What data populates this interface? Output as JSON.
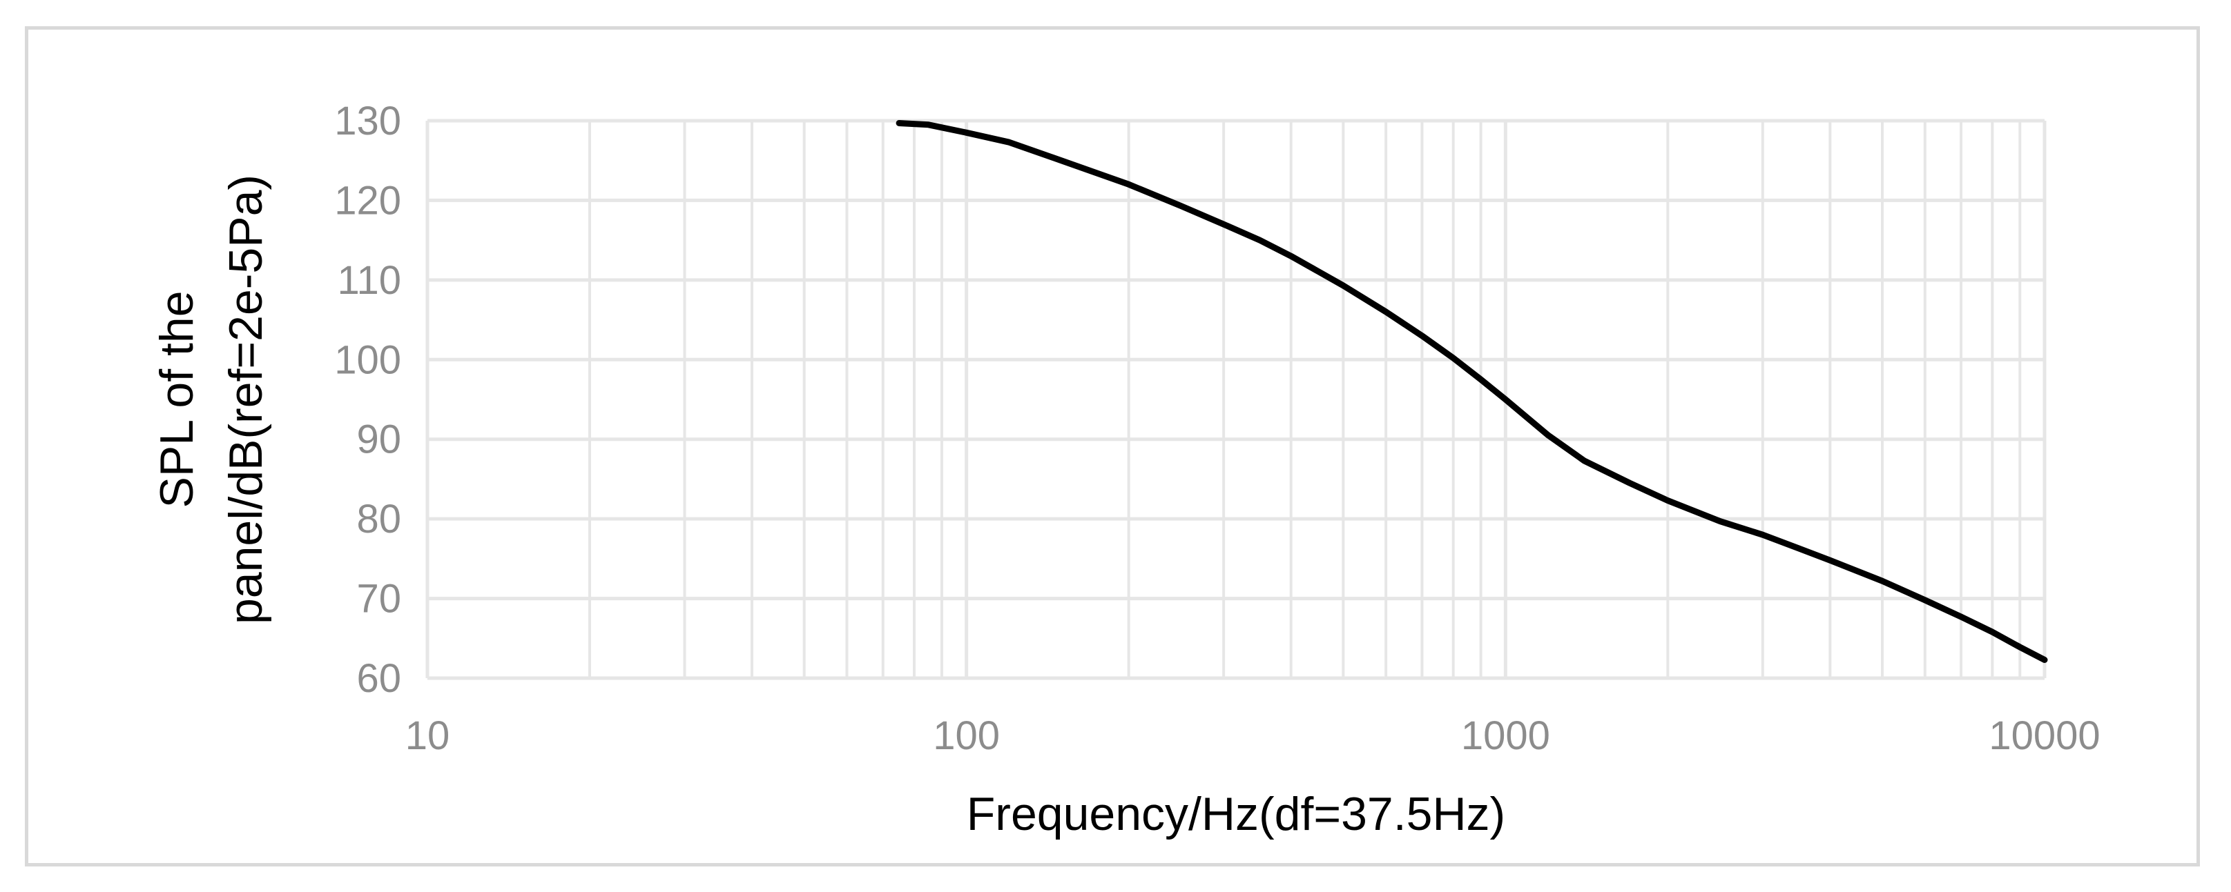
{
  "chart_data": {
    "type": "line",
    "xscale": "log",
    "xlim": [
      10,
      10000
    ],
    "ylim": [
      60,
      130
    ],
    "grid": {
      "major": true,
      "minor_x": true
    },
    "legend": "none",
    "xlabel": "Frequency/Hz(df=37.5Hz)",
    "ylabel_lines": [
      "SPL of the",
      "panel/dB(ref=2e-5Pa)"
    ],
    "x_ticks": [
      10,
      100,
      1000,
      10000
    ],
    "x_tick_labels": [
      "10",
      "100",
      "1000",
      "10000"
    ],
    "y_ticks": [
      60,
      70,
      80,
      90,
      100,
      110,
      120,
      130
    ],
    "y_tick_labels": [
      "60",
      "70",
      "80",
      "90",
      "100",
      "110",
      "120",
      "130"
    ],
    "colors": {
      "line": "#000000",
      "grid": "#e6e6e6",
      "tick_text": "#8c8c8c",
      "frame": "#d9d9d9"
    },
    "series": [
      {
        "x": [
          75,
          85,
          100,
          120,
          150,
          200,
          250,
          300,
          350,
          400,
          500,
          600,
          700,
          800,
          900,
          1000,
          1200,
          1400,
          1700,
          2000,
          2500,
          3000,
          3500,
          4000,
          5000,
          6000,
          7000,
          8000,
          9000,
          10000
        ],
        "y": [
          129.7,
          129.5,
          128.5,
          127.3,
          125.0,
          122.0,
          119.3,
          117.0,
          115.0,
          113.0,
          109.3,
          106.0,
          103.0,
          100.2,
          97.5,
          95.0,
          90.5,
          87.3,
          84.5,
          82.3,
          79.7,
          78.0,
          76.3,
          74.8,
          72.2,
          69.8,
          67.7,
          65.8,
          63.9,
          62.3
        ]
      }
    ]
  }
}
